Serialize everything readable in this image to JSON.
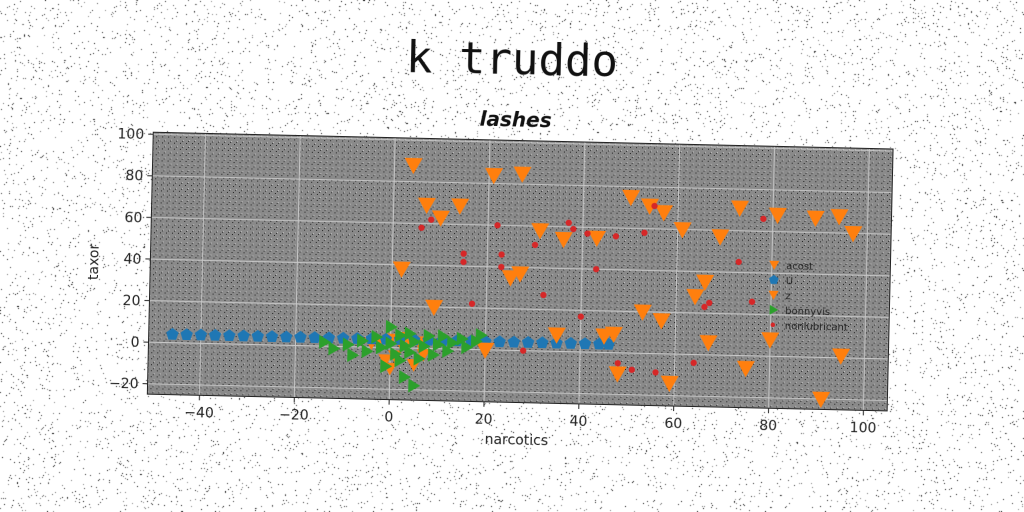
{
  "suptitle": "k truddo",
  "chart_data": {
    "type": "scatter",
    "title": "lashes",
    "xlabel": "narcotics",
    "ylabel": "taxor",
    "xlim": [
      -51,
      105
    ],
    "ylim": [
      -25,
      101
    ],
    "xticks": [
      -40,
      -20,
      0,
      20,
      40,
      60,
      80,
      100
    ],
    "yticks": [
      -20,
      0,
      20,
      40,
      60,
      80,
      100
    ],
    "xtick_labels": [
      "−40",
      "−20",
      "0",
      "20",
      "40",
      "60",
      "80",
      "100"
    ],
    "ytick_labels": [
      "−20",
      "0",
      "20",
      "40",
      "60",
      "80",
      "100"
    ],
    "grid": true,
    "legend_position": "right",
    "series": [
      {
        "name": "acost",
        "marker": "triangle-down",
        "color": "#ff7f0e",
        "in_legend": true,
        "points": [
          [
            -4,
            2
          ],
          [
            -2,
            3
          ],
          [
            0,
            4
          ],
          [
            3,
            5
          ],
          [
            1,
            -4
          ],
          [
            -1,
            -6
          ],
          [
            2,
            3
          ],
          [
            4,
            4
          ],
          [
            6,
            3
          ],
          [
            7,
            -3
          ],
          [
            5,
            -8
          ],
          [
            0,
            -10
          ]
        ]
      },
      {
        "name": "U",
        "marker": "pentagon",
        "color": "#1f77b4",
        "in_legend": true,
        "points": [
          [
            -46,
            4
          ],
          [
            -43,
            4
          ],
          [
            -40,
            4
          ],
          [
            -37,
            4
          ],
          [
            -34,
            4
          ],
          [
            -31,
            4
          ],
          [
            -28,
            4
          ],
          [
            -25,
            4
          ],
          [
            -22,
            4
          ],
          [
            -19,
            4
          ],
          [
            -16,
            4
          ],
          [
            -13,
            4
          ],
          [
            -10,
            4
          ],
          [
            -7,
            4
          ],
          [
            -4,
            4
          ],
          [
            -1,
            4
          ],
          [
            2,
            4
          ],
          [
            5,
            4
          ],
          [
            8,
            4
          ],
          [
            11,
            4
          ],
          [
            14,
            4
          ],
          [
            17,
            4
          ],
          [
            20,
            4
          ],
          [
            23,
            4
          ],
          [
            26,
            4
          ],
          [
            29,
            4
          ],
          [
            32,
            4
          ],
          [
            35,
            4
          ],
          [
            38,
            4
          ],
          [
            41,
            4
          ],
          [
            44,
            4
          ],
          [
            46,
            4
          ]
        ]
      },
      {
        "name": "z",
        "marker": "triangle-down",
        "color": "#ff7f0e",
        "in_legend": true,
        "points": [
          [
            4,
            88
          ],
          [
            21,
            84
          ],
          [
            27,
            85
          ],
          [
            7,
            69
          ],
          [
            10,
            63
          ],
          [
            14,
            69
          ],
          [
            2,
            38
          ],
          [
            9,
            20
          ],
          [
            20,
            0
          ],
          [
            25,
            35
          ],
          [
            27,
            37
          ],
          [
            31,
            58
          ],
          [
            36,
            54
          ],
          [
            43,
            55
          ],
          [
            35,
            8
          ],
          [
            45,
            8
          ],
          [
            47,
            9
          ],
          [
            48,
            -10
          ],
          [
            53,
            20
          ],
          [
            50,
            75
          ],
          [
            54,
            71
          ],
          [
            57,
            68
          ],
          [
            57,
            16
          ],
          [
            59,
            -14
          ],
          [
            61,
            60
          ],
          [
            64,
            28
          ],
          [
            66,
            35
          ],
          [
            69,
            57
          ],
          [
            67,
            6
          ],
          [
            73,
            71
          ],
          [
            75,
            -6
          ],
          [
            81,
            68
          ],
          [
            80,
            8
          ],
          [
            89,
            67
          ],
          [
            94,
            68
          ],
          [
            97,
            60
          ],
          [
            91,
            -20
          ],
          [
            95,
            1
          ]
        ]
      },
      {
        "name": "bonnyvis",
        "marker": "triangle-right",
        "color": "#2ca02c",
        "in_legend": true,
        "points": [
          [
            -14,
            2
          ],
          [
            -12,
            -1
          ],
          [
            -9,
            1
          ],
          [
            -8,
            -4
          ],
          [
            -6,
            3
          ],
          [
            -5,
            -2
          ],
          [
            -3,
            5
          ],
          [
            -2,
            0
          ],
          [
            -1,
            -9
          ],
          [
            0,
            2
          ],
          [
            0,
            10
          ],
          [
            1,
            -3
          ],
          [
            2,
            6
          ],
          [
            2,
            -6
          ],
          [
            3,
            1
          ],
          [
            3,
            -14
          ],
          [
            4,
            7
          ],
          [
            4,
            -2
          ],
          [
            5,
            3
          ],
          [
            5,
            -18
          ],
          [
            6,
            -5
          ],
          [
            7,
            1
          ],
          [
            8,
            6
          ],
          [
            9,
            -3
          ],
          [
            10,
            2
          ],
          [
            11,
            6
          ],
          [
            12,
            -1
          ],
          [
            13,
            3
          ],
          [
            15,
            5
          ],
          [
            16,
            1
          ],
          [
            18,
            4
          ],
          [
            19,
            7
          ]
        ]
      },
      {
        "name": "nonlubricant",
        "marker": "circle",
        "color": "#d62728",
        "in_legend": true,
        "points": [
          [
            6,
            58
          ],
          [
            8,
            62
          ],
          [
            15,
            46
          ],
          [
            15,
            42
          ],
          [
            17,
            22
          ],
          [
            22,
            60
          ],
          [
            23,
            46
          ],
          [
            23,
            40
          ],
          [
            28,
            0
          ],
          [
            30,
            51
          ],
          [
            32,
            27
          ],
          [
            37,
            62
          ],
          [
            38,
            59
          ],
          [
            40,
            17
          ],
          [
            41,
            57
          ],
          [
            43,
            40
          ],
          [
            47,
            56
          ],
          [
            48,
            -5
          ],
          [
            51,
            -8
          ],
          [
            53,
            58
          ],
          [
            56,
            -9
          ],
          [
            55,
            71
          ],
          [
            64,
            -4
          ],
          [
            66,
            23
          ],
          [
            67,
            25
          ],
          [
            73,
            45
          ],
          [
            76,
            26
          ],
          [
            78,
            66
          ]
        ]
      }
    ]
  }
}
